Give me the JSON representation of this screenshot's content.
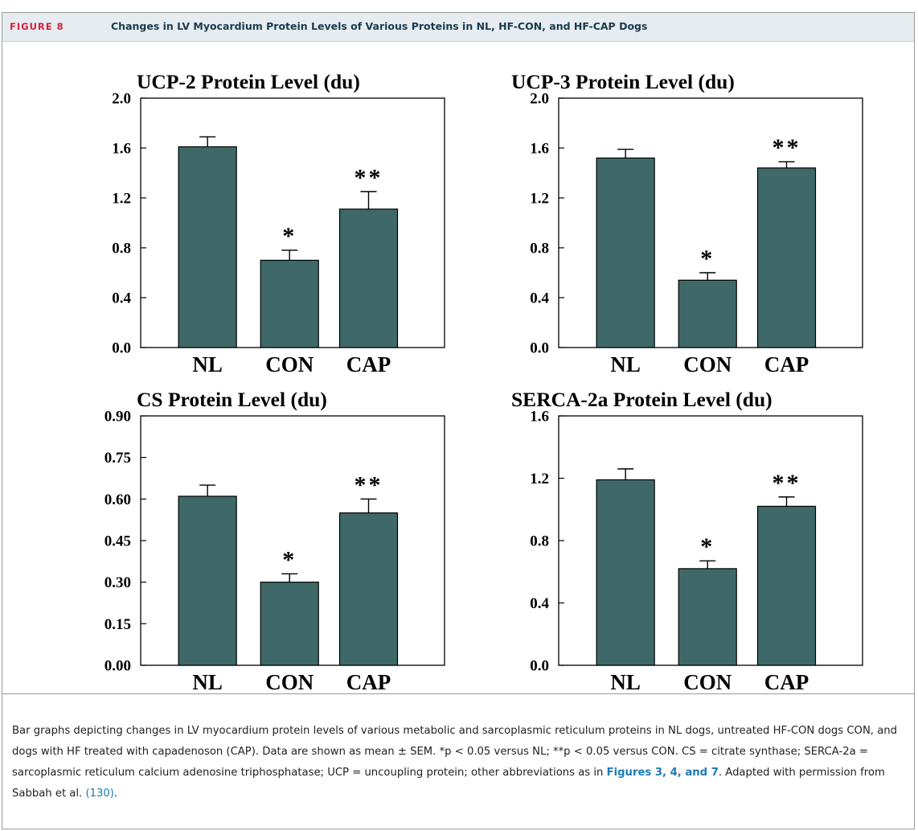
{
  "figure": {
    "label": "FIGURE 8",
    "title": "Changes in LV Myocardium Protein Levels of Various Proteins in NL, HF-CON, and HF-CAP Dogs"
  },
  "caption": {
    "part1": "Bar graphs depicting changes in LV myocardium protein levels of various metabolic and sarcoplasmic reticulum proteins in NL dogs, untreated HF-CON dogs CON, and dogs with HF treated with capadenoson (CAP). Data are shown as mean ± SEM. *p < 0.05 versus NL; **p < 0.05 versus CON. CS = citrate synthase; SERCA-2a = sarcoplasmic reticulum calcium adenosine triphosphatase; UCP = uncoupling protein; other abbreviations as in ",
    "figure_refs": "Figures 3, 4, and 7",
    "part2": ". Adapted with permission from Sabbah et al. ",
    "citation": "(130)",
    "part3": "."
  },
  "colors": {
    "bar": "#3f6968",
    "accent": "#d1203f",
    "title": "#1c3a4d",
    "link": "#1b7bb6",
    "header_band": "#e6ecef"
  },
  "chart_data": [
    {
      "type": "bar",
      "title": "UCP-2 Protein Level (du)",
      "categories": [
        "NL",
        "CON",
        "CAP"
      ],
      "values": [
        1.61,
        0.7,
        1.11
      ],
      "errors": [
        0.08,
        0.08,
        0.14
      ],
      "significance": [
        "",
        "*",
        "**"
      ],
      "ylim": [
        0,
        2.0
      ],
      "yticks": [
        "0.0",
        "0.4",
        "0.8",
        "1.2",
        "1.6",
        "2.0"
      ]
    },
    {
      "type": "bar",
      "title": "UCP-3 Protein Level (du)",
      "categories": [
        "NL",
        "CON",
        "CAP"
      ],
      "values": [
        1.52,
        0.54,
        1.44
      ],
      "errors": [
        0.07,
        0.06,
        0.05
      ],
      "significance": [
        "",
        "*",
        "**"
      ],
      "ylim": [
        0,
        2.0
      ],
      "yticks": [
        "0.0",
        "0.4",
        "0.8",
        "1.2",
        "1.6",
        "2.0"
      ]
    },
    {
      "type": "bar",
      "title": "CS Protein Level (du)",
      "categories": [
        "NL",
        "CON",
        "CAP"
      ],
      "values": [
        0.61,
        0.3,
        0.55
      ],
      "errors": [
        0.04,
        0.03,
        0.05
      ],
      "significance": [
        "",
        "*",
        "**"
      ],
      "ylim": [
        0,
        0.9
      ],
      "yticks": [
        "0.00",
        "0.15",
        "0.30",
        "0.45",
        "0.60",
        "0.75",
        "0.90"
      ]
    },
    {
      "type": "bar",
      "title": "SERCA-2a Protein Level (du)",
      "categories": [
        "NL",
        "CON",
        "CAP"
      ],
      "values": [
        1.19,
        0.62,
        1.02
      ],
      "errors": [
        0.07,
        0.05,
        0.06
      ],
      "significance": [
        "",
        "*",
        "**"
      ],
      "ylim": [
        0,
        1.6
      ],
      "yticks": [
        "0.0",
        "0.4",
        "0.8",
        "1.2",
        "1.6"
      ]
    }
  ]
}
